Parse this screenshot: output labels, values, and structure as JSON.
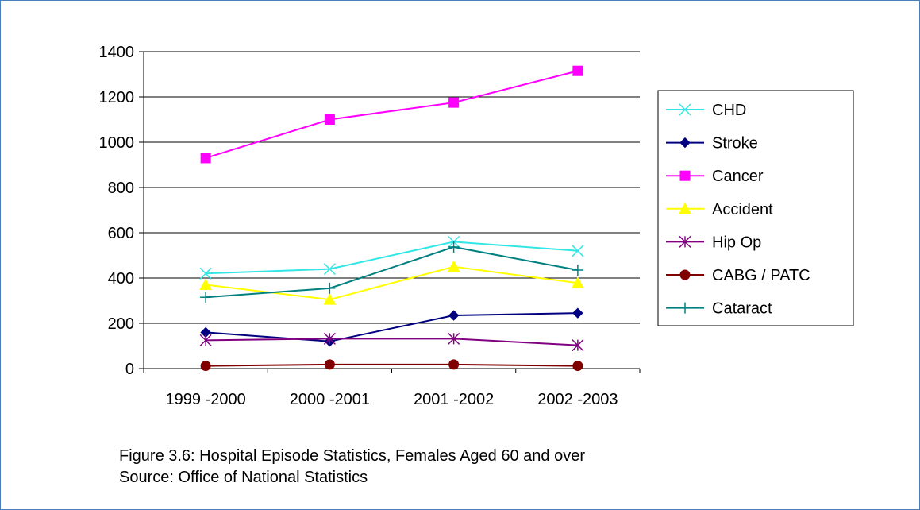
{
  "chart_data": {
    "type": "line",
    "categories": [
      "1999 -2000",
      "2000 -2001",
      "2001 -2002",
      "2002 -2003"
    ],
    "ylim": [
      0,
      1400
    ],
    "yticks": [
      0,
      200,
      400,
      600,
      800,
      1000,
      1200,
      1400
    ],
    "grid": true,
    "legend_position": "right",
    "series": [
      {
        "name": "CHD",
        "color": "#33e6e6",
        "marker": "x",
        "values": [
          420,
          440,
          560,
          520
        ]
      },
      {
        "name": "Stroke",
        "color": "#000080",
        "marker": "diamond",
        "values": [
          160,
          120,
          235,
          245
        ]
      },
      {
        "name": "Cancer",
        "color": "#ff00ff",
        "marker": "square",
        "values": [
          930,
          1100,
          1175,
          1315
        ]
      },
      {
        "name": "Accident",
        "color": "#ffff00",
        "marker": "triangle",
        "values": [
          370,
          305,
          450,
          378
        ]
      },
      {
        "name": "Hip Op",
        "color": "#800080",
        "marker": "star",
        "values": [
          125,
          132,
          132,
          103
        ]
      },
      {
        "name": "CABG / PATC",
        "color": "#800000",
        "marker": "circle",
        "values": [
          12,
          18,
          18,
          12
        ]
      },
      {
        "name": "Cataract",
        "color": "#008080",
        "marker": "plus",
        "values": [
          315,
          355,
          537,
          435
        ]
      }
    ]
  },
  "caption": {
    "line1": "Figure 3.6: Hospital Episode Statistics, Females Aged 60 and over",
    "line2": "Source: Office of National Statistics"
  }
}
